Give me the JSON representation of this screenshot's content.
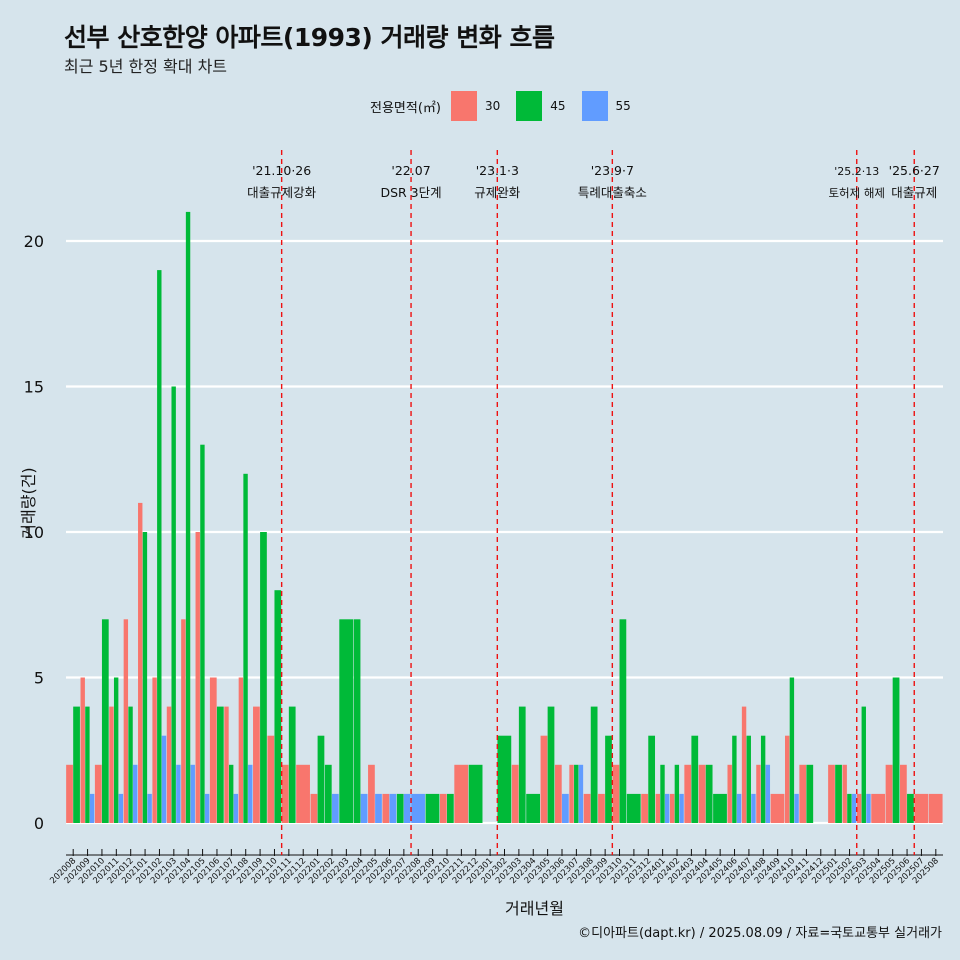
{
  "title": "선부 산호한양 아파트(1993) 거래량 변화 흐름",
  "subtitle": "최근 5년 한정 확대 차트",
  "caption": "©디아파트(dapt.kr) / 2025.08.09 / 자료=국토교통부 실거래가",
  "colors": {
    "s30": "#f8766d",
    "s45": "#00ba38",
    "s55": "#619cff",
    "grid": "#ffffff",
    "event": "#ee1111",
    "background": "#d6e4ec"
  },
  "chart_data": {
    "type": "bar",
    "xlabel": "거래년월",
    "ylabel": "거래량(건)",
    "ylim": [
      0,
      22
    ],
    "yticks": [
      0,
      5,
      10,
      15,
      20
    ],
    "grid": true,
    "legend_title": "전용면적(㎡)",
    "legend_position": "top",
    "categories": [
      "202008",
      "202009",
      "202010",
      "202011",
      "202012",
      "202101",
      "202102",
      "202103",
      "202104",
      "202105",
      "202106",
      "202107",
      "202108",
      "202109",
      "202110",
      "202111",
      "202112",
      "202201",
      "202202",
      "202203",
      "202204",
      "202205",
      "202206",
      "202207",
      "202208",
      "202209",
      "202210",
      "202211",
      "202212",
      "202301",
      "202302",
      "202303",
      "202304",
      "202305",
      "202306",
      "202307",
      "202308",
      "202309",
      "202310",
      "202311",
      "202312",
      "202401",
      "202402",
      "202403",
      "202404",
      "202405",
      "202406",
      "202407",
      "202408",
      "202409",
      "202410",
      "202411",
      "202412",
      "202501",
      "202502",
      "202503",
      "202504",
      "202505",
      "202506",
      "202507",
      "202508"
    ],
    "series": [
      {
        "name": "30",
        "values": [
          2,
          5,
          2,
          4,
          7,
          11,
          5,
          4,
          7,
          10,
          5,
          4,
          5,
          4,
          3,
          2,
          2,
          1,
          0,
          0,
          0,
          2,
          1,
          0,
          0,
          0,
          1,
          2,
          0,
          0,
          0,
          2,
          0,
          3,
          2,
          2,
          1,
          1,
          2,
          0,
          1,
          1,
          1,
          2,
          2,
          0,
          2,
          4,
          2,
          1,
          3,
          2,
          0,
          2,
          2,
          1,
          1,
          2,
          2,
          1,
          1
        ]
      },
      {
        "name": "45",
        "values": [
          4,
          4,
          7,
          5,
          4,
          10,
          19,
          15,
          21,
          13,
          4,
          2,
          12,
          10,
          8,
          4,
          0,
          3,
          2,
          7,
          7,
          0,
          0,
          1,
          0,
          1,
          1,
          0,
          2,
          0,
          3,
          4,
          1,
          4,
          0,
          2,
          4,
          3,
          7,
          1,
          3,
          2,
          2,
          3,
          2,
          1,
          3,
          3,
          3,
          0,
          5,
          2,
          0,
          2,
          1,
          4,
          0,
          5,
          1,
          0,
          0
        ]
      },
      {
        "name": "55",
        "values": [
          0,
          1,
          0,
          1,
          2,
          1,
          3,
          2,
          2,
          1,
          0,
          1,
          2,
          0,
          0,
          0,
          0,
          0,
          1,
          0,
          1,
          1,
          1,
          1,
          1,
          0,
          0,
          0,
          0,
          0,
          0,
          0,
          0,
          0,
          1,
          2,
          0,
          0,
          0,
          0,
          0,
          1,
          1,
          0,
          0,
          0,
          1,
          1,
          2,
          0,
          1,
          0,
          0,
          0,
          1,
          1,
          0,
          0,
          0,
          0,
          0
        ]
      }
    ],
    "events": [
      {
        "after": "202110",
        "date": "'21.10·26",
        "label": "대출규제강화"
      },
      {
        "after": "202207",
        "date": "'22.07",
        "label": "DSR 3단계"
      },
      {
        "after": "202301",
        "date": "'23.1·3",
        "label": "규제완화"
      },
      {
        "after": "202309",
        "date": "'23.9·7",
        "label": "특례대출축소"
      },
      {
        "after": "202502",
        "date": "'25.2·13",
        "label": "토허제 해제"
      },
      {
        "after": "202506",
        "date": "'25.6·27",
        "label": "대출규제"
      }
    ]
  }
}
